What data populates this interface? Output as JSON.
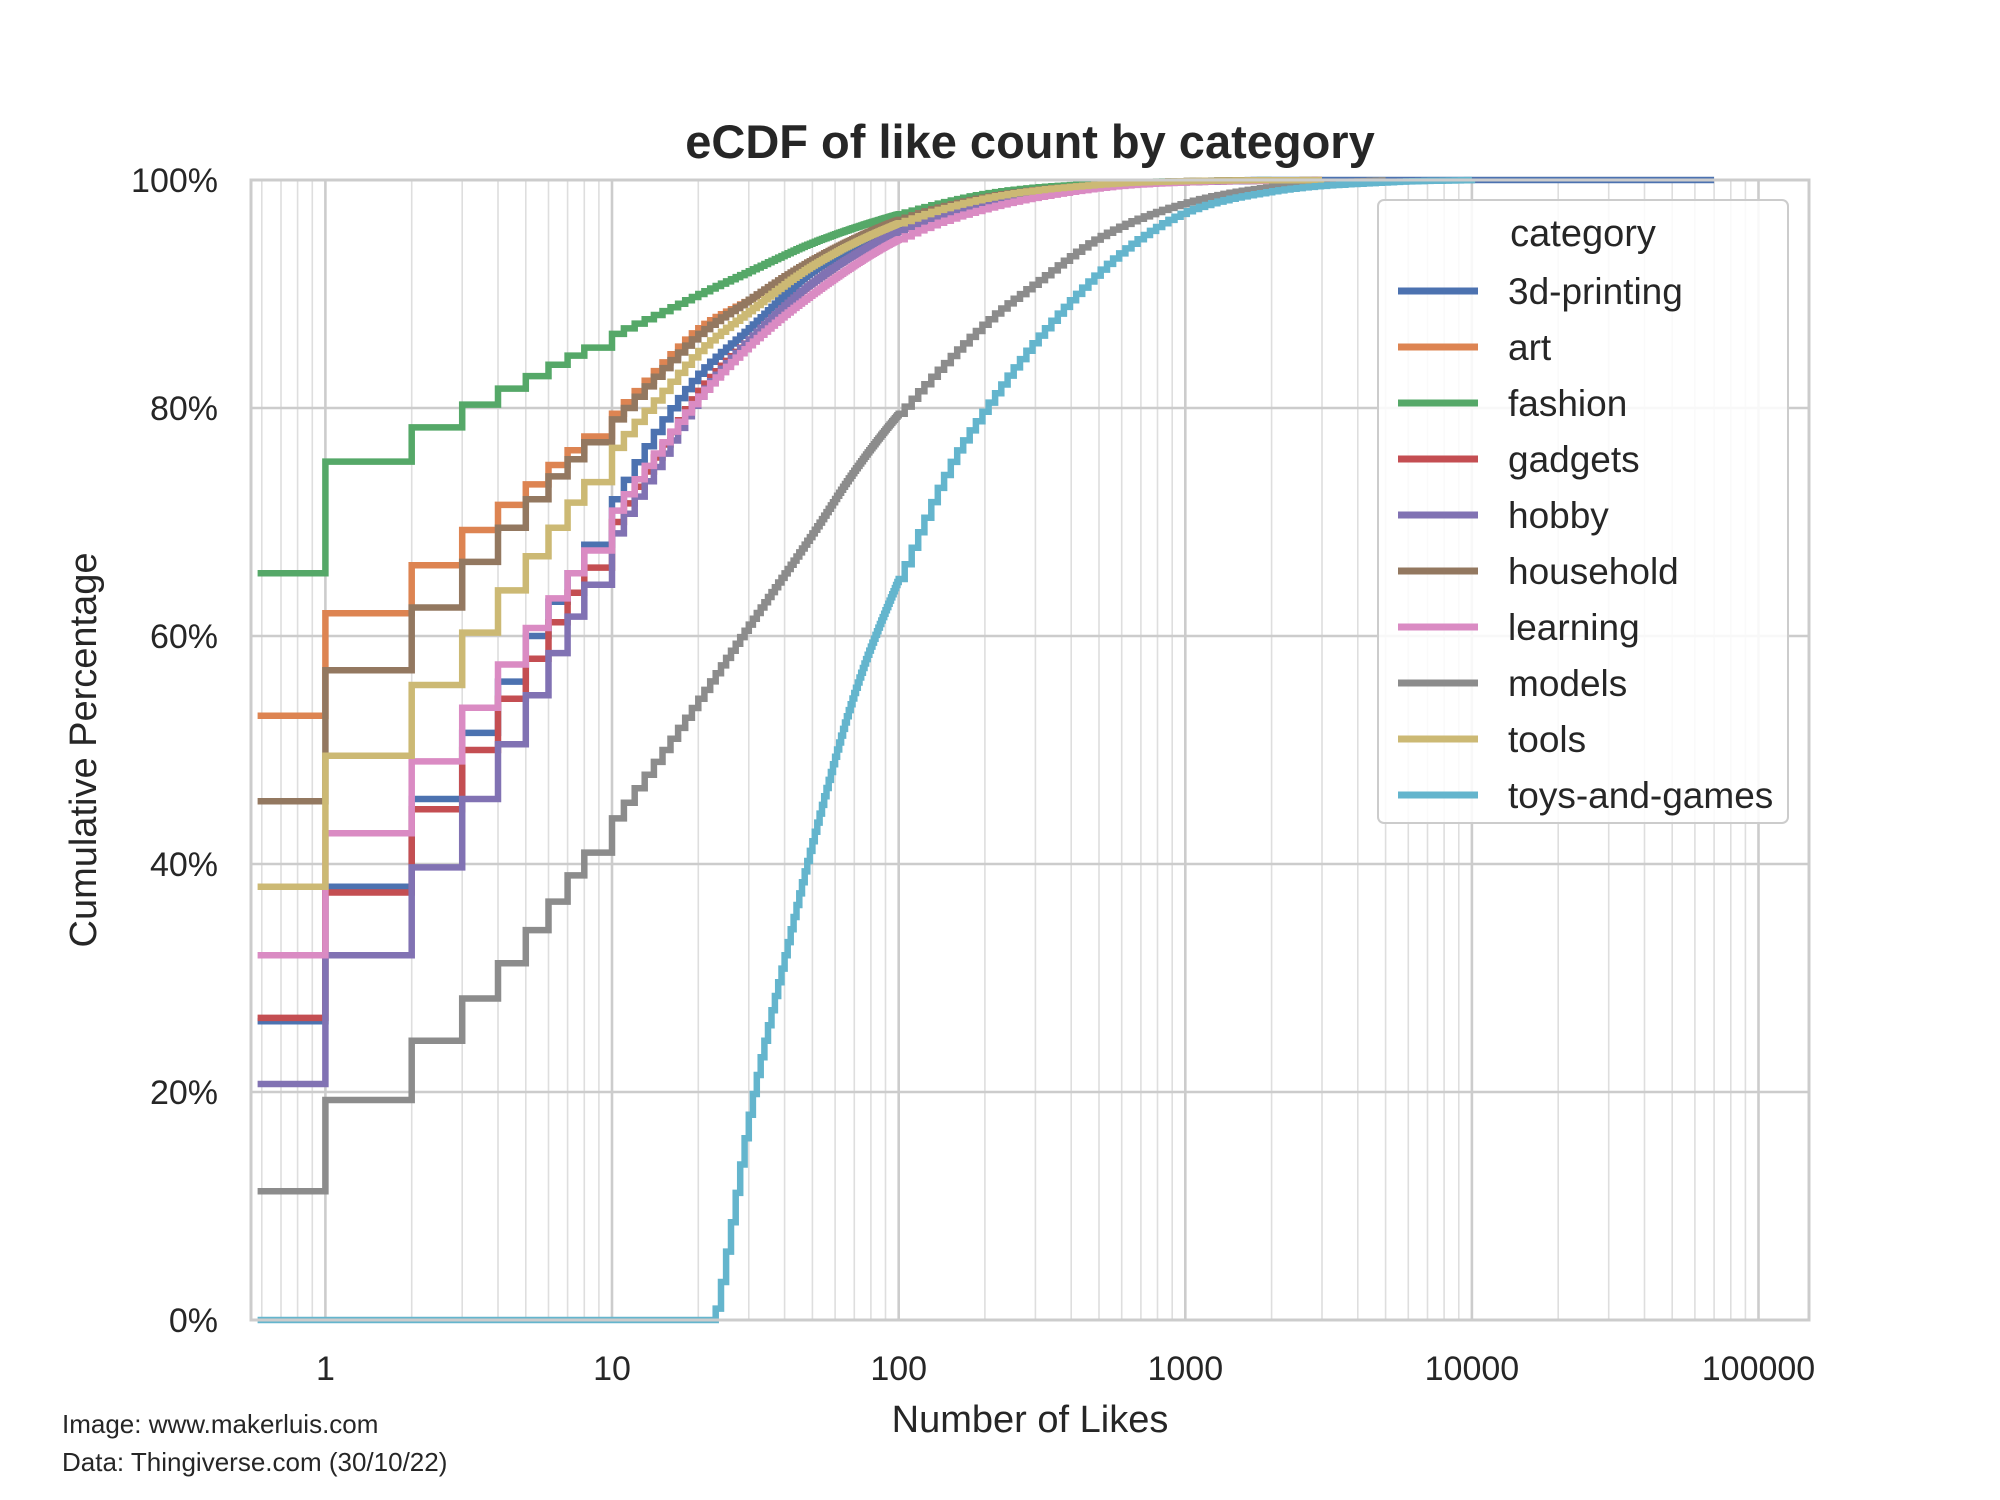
{
  "chart_data": {
    "type": "line",
    "drawstyle": "step",
    "title": "eCDF of like count by category",
    "xlabel": "Number of Likes",
    "ylabel": "Cumulative Percentage",
    "xscale": "log",
    "xlim": [
      0.55,
      150000
    ],
    "ylim": [
      0,
      1
    ],
    "xticks": [
      1,
      10,
      100,
      1000,
      10000,
      100000
    ],
    "xtick_labels": [
      "1",
      "10",
      "100",
      "1000",
      "10000",
      "100000"
    ],
    "yticks": [
      0,
      0.2,
      0.4,
      0.6,
      0.8,
      1.0
    ],
    "ytick_labels": [
      "0%",
      "20%",
      "40%",
      "60%",
      "80%",
      "100%"
    ],
    "grid": true,
    "legend": {
      "title": "category",
      "placement": "upper-right"
    },
    "series": [
      {
        "name": "3d-printing",
        "color": "#4c72b0",
        "x": [
          0.58,
          1,
          2,
          3,
          4,
          5,
          6,
          7,
          8,
          10,
          15,
          20,
          30,
          50,
          100,
          200,
          500,
          1000,
          70000
        ],
        "y": [
          0.262,
          0.38,
          0.457,
          0.515,
          0.56,
          0.6,
          0.63,
          0.655,
          0.68,
          0.72,
          0.79,
          0.83,
          0.87,
          0.92,
          0.96,
          0.985,
          0.996,
          0.999,
          1.0
        ]
      },
      {
        "name": "art",
        "color": "#dd8452",
        "x": [
          0.58,
          1,
          2,
          3,
          4,
          5,
          6,
          7,
          8,
          10,
          15,
          20,
          30,
          50,
          100,
          200,
          500,
          1000,
          3000
        ],
        "y": [
          0.53,
          0.62,
          0.662,
          0.693,
          0.715,
          0.733,
          0.75,
          0.763,
          0.775,
          0.795,
          0.84,
          0.87,
          0.895,
          0.93,
          0.965,
          0.985,
          0.996,
          0.999,
          1.0
        ]
      },
      {
        "name": "fashion",
        "color": "#55a868",
        "x": [
          0.58,
          1,
          2,
          3,
          4,
          5,
          6,
          7,
          8,
          10,
          15,
          20,
          30,
          50,
          100,
          200,
          500,
          1000,
          2000
        ],
        "y": [
          0.655,
          0.753,
          0.783,
          0.803,
          0.817,
          0.828,
          0.838,
          0.846,
          0.853,
          0.865,
          0.885,
          0.9,
          0.92,
          0.945,
          0.97,
          0.988,
          0.997,
          0.999,
          1.0
        ]
      },
      {
        "name": "gadgets",
        "color": "#c44e52",
        "x": [
          0.58,
          1,
          2,
          3,
          4,
          5,
          6,
          7,
          8,
          10,
          15,
          20,
          30,
          50,
          100,
          200,
          500,
          1000,
          3000
        ],
        "y": [
          0.265,
          0.375,
          0.448,
          0.5,
          0.545,
          0.58,
          0.612,
          0.638,
          0.66,
          0.7,
          0.768,
          0.815,
          0.86,
          0.91,
          0.955,
          0.98,
          0.995,
          0.998,
          1.0
        ]
      },
      {
        "name": "hobby",
        "color": "#8172b3",
        "x": [
          0.58,
          1,
          2,
          3,
          4,
          5,
          6,
          7,
          8,
          10,
          15,
          20,
          30,
          50,
          100,
          200,
          500,
          1000,
          3000
        ],
        "y": [
          0.207,
          0.32,
          0.397,
          0.457,
          0.505,
          0.548,
          0.585,
          0.617,
          0.645,
          0.69,
          0.76,
          0.81,
          0.86,
          0.91,
          0.955,
          0.98,
          0.995,
          0.998,
          1.0
        ]
      },
      {
        "name": "household",
        "color": "#937860",
        "x": [
          0.58,
          1,
          2,
          3,
          4,
          5,
          6,
          7,
          8,
          10,
          15,
          20,
          30,
          50,
          100,
          200,
          500,
          1000,
          3000
        ],
        "y": [
          0.455,
          0.57,
          0.625,
          0.665,
          0.695,
          0.72,
          0.74,
          0.755,
          0.77,
          0.79,
          0.835,
          0.865,
          0.895,
          0.93,
          0.965,
          0.985,
          0.996,
          0.999,
          1.0
        ]
      },
      {
        "name": "learning",
        "color": "#da8bc3",
        "x": [
          0.58,
          1,
          2,
          3,
          4,
          5,
          6,
          7,
          8,
          10,
          15,
          20,
          30,
          50,
          100,
          200,
          500,
          1000,
          3000
        ],
        "y": [
          0.32,
          0.427,
          0.49,
          0.537,
          0.575,
          0.607,
          0.633,
          0.655,
          0.675,
          0.71,
          0.77,
          0.81,
          0.855,
          0.9,
          0.948,
          0.975,
          0.993,
          0.998,
          1.0
        ]
      },
      {
        "name": "models",
        "color": "#8c8c8c",
        "x": [
          0.58,
          1,
          2,
          3,
          4,
          5,
          6,
          7,
          8,
          10,
          15,
          20,
          30,
          50,
          70,
          100,
          200,
          300,
          500,
          1000,
          2000,
          5000
        ],
        "y": [
          0.113,
          0.193,
          0.245,
          0.282,
          0.313,
          0.342,
          0.367,
          0.39,
          0.41,
          0.44,
          0.5,
          0.545,
          0.61,
          0.69,
          0.745,
          0.795,
          0.875,
          0.91,
          0.95,
          0.98,
          0.994,
          1.0
        ]
      },
      {
        "name": "tools",
        "color": "#ccb974",
        "x": [
          0.58,
          1,
          2,
          3,
          4,
          5,
          6,
          7,
          8,
          10,
          15,
          20,
          30,
          50,
          100,
          200,
          500,
          1000,
          3000
        ],
        "y": [
          0.38,
          0.495,
          0.557,
          0.603,
          0.64,
          0.67,
          0.695,
          0.717,
          0.735,
          0.765,
          0.815,
          0.85,
          0.885,
          0.925,
          0.962,
          0.984,
          0.996,
          0.999,
          1.0
        ]
      },
      {
        "name": "toys-and-games",
        "color": "#64b5cd",
        "x": [
          0.58,
          22,
          23,
          25,
          30,
          40,
          50,
          70,
          100,
          150,
          200,
          300,
          500,
          700,
          1000,
          2000,
          5000,
          10000
        ],
        "y": [
          0.0,
          0.0,
          0.01,
          0.06,
          0.18,
          0.32,
          0.42,
          0.55,
          0.65,
          0.75,
          0.8,
          0.86,
          0.92,
          0.95,
          0.972,
          0.99,
          0.998,
          1.0
        ]
      }
    ]
  },
  "credits": {
    "image": "Image: www.makerluis.com",
    "data": "Data: Thingiverse.com (30/10/22)"
  }
}
